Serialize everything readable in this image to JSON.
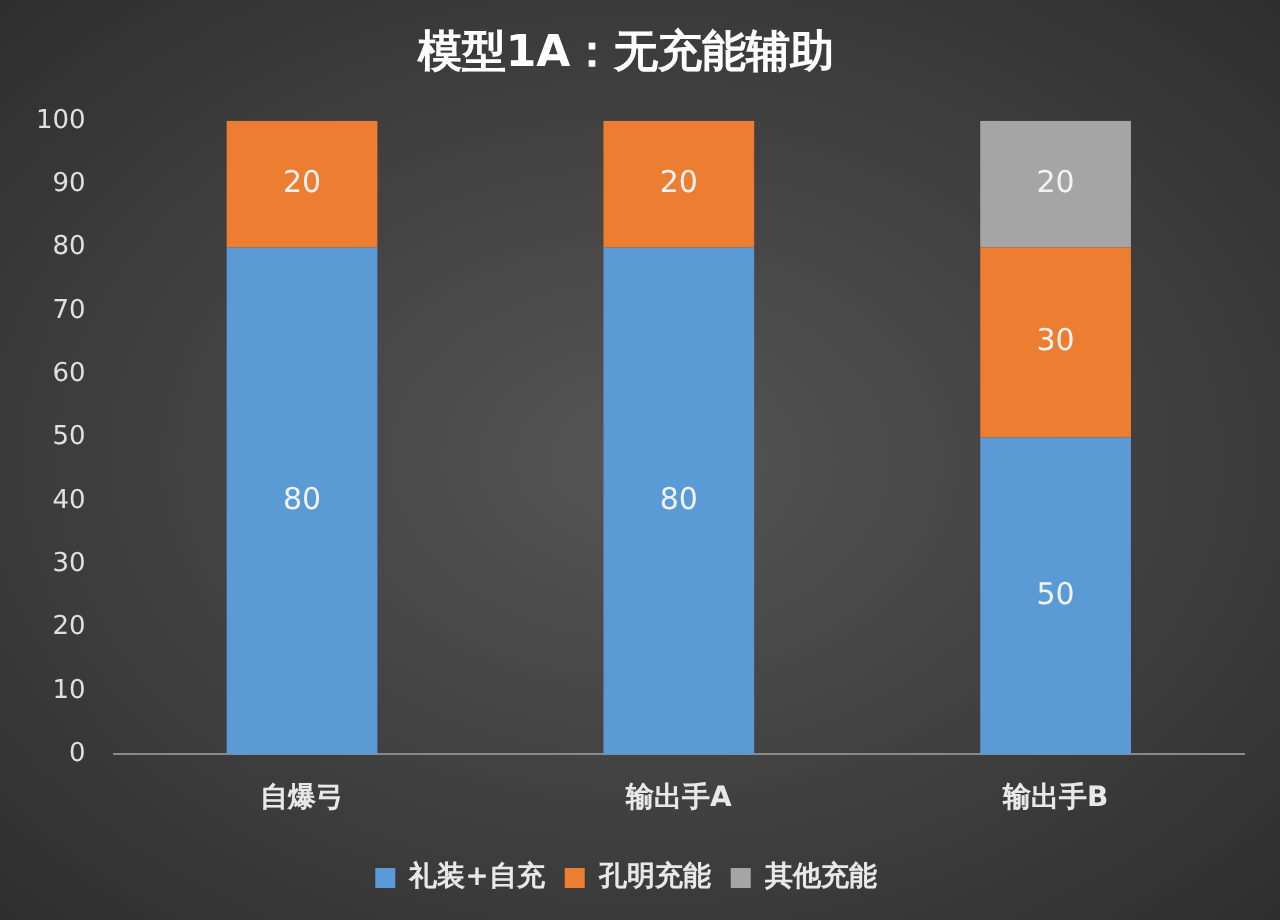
{
  "chart_data": {
    "type": "bar",
    "title": "模型1A：无充能辅助",
    "categories": [
      "自爆弓",
      "输出手A",
      "输出手B"
    ],
    "stacked": true,
    "series": [
      {
        "name": "礼装+自充",
        "color": "#5b9bd5",
        "values": [
          80,
          80,
          50
        ]
      },
      {
        "name": "孔明充能",
        "color": "#ed7d31",
        "values": [
          20,
          20,
          30
        ]
      },
      {
        "name": "其他充能",
        "color": "#a5a5a5",
        "values": [
          null,
          null,
          20
        ]
      }
    ],
    "ylim": [
      0,
      100
    ],
    "yticks": [
      0,
      10,
      20,
      30,
      40,
      50,
      60,
      70,
      80,
      90,
      100
    ],
    "grid": false,
    "legend": "bottom",
    "data_labels": true
  }
}
